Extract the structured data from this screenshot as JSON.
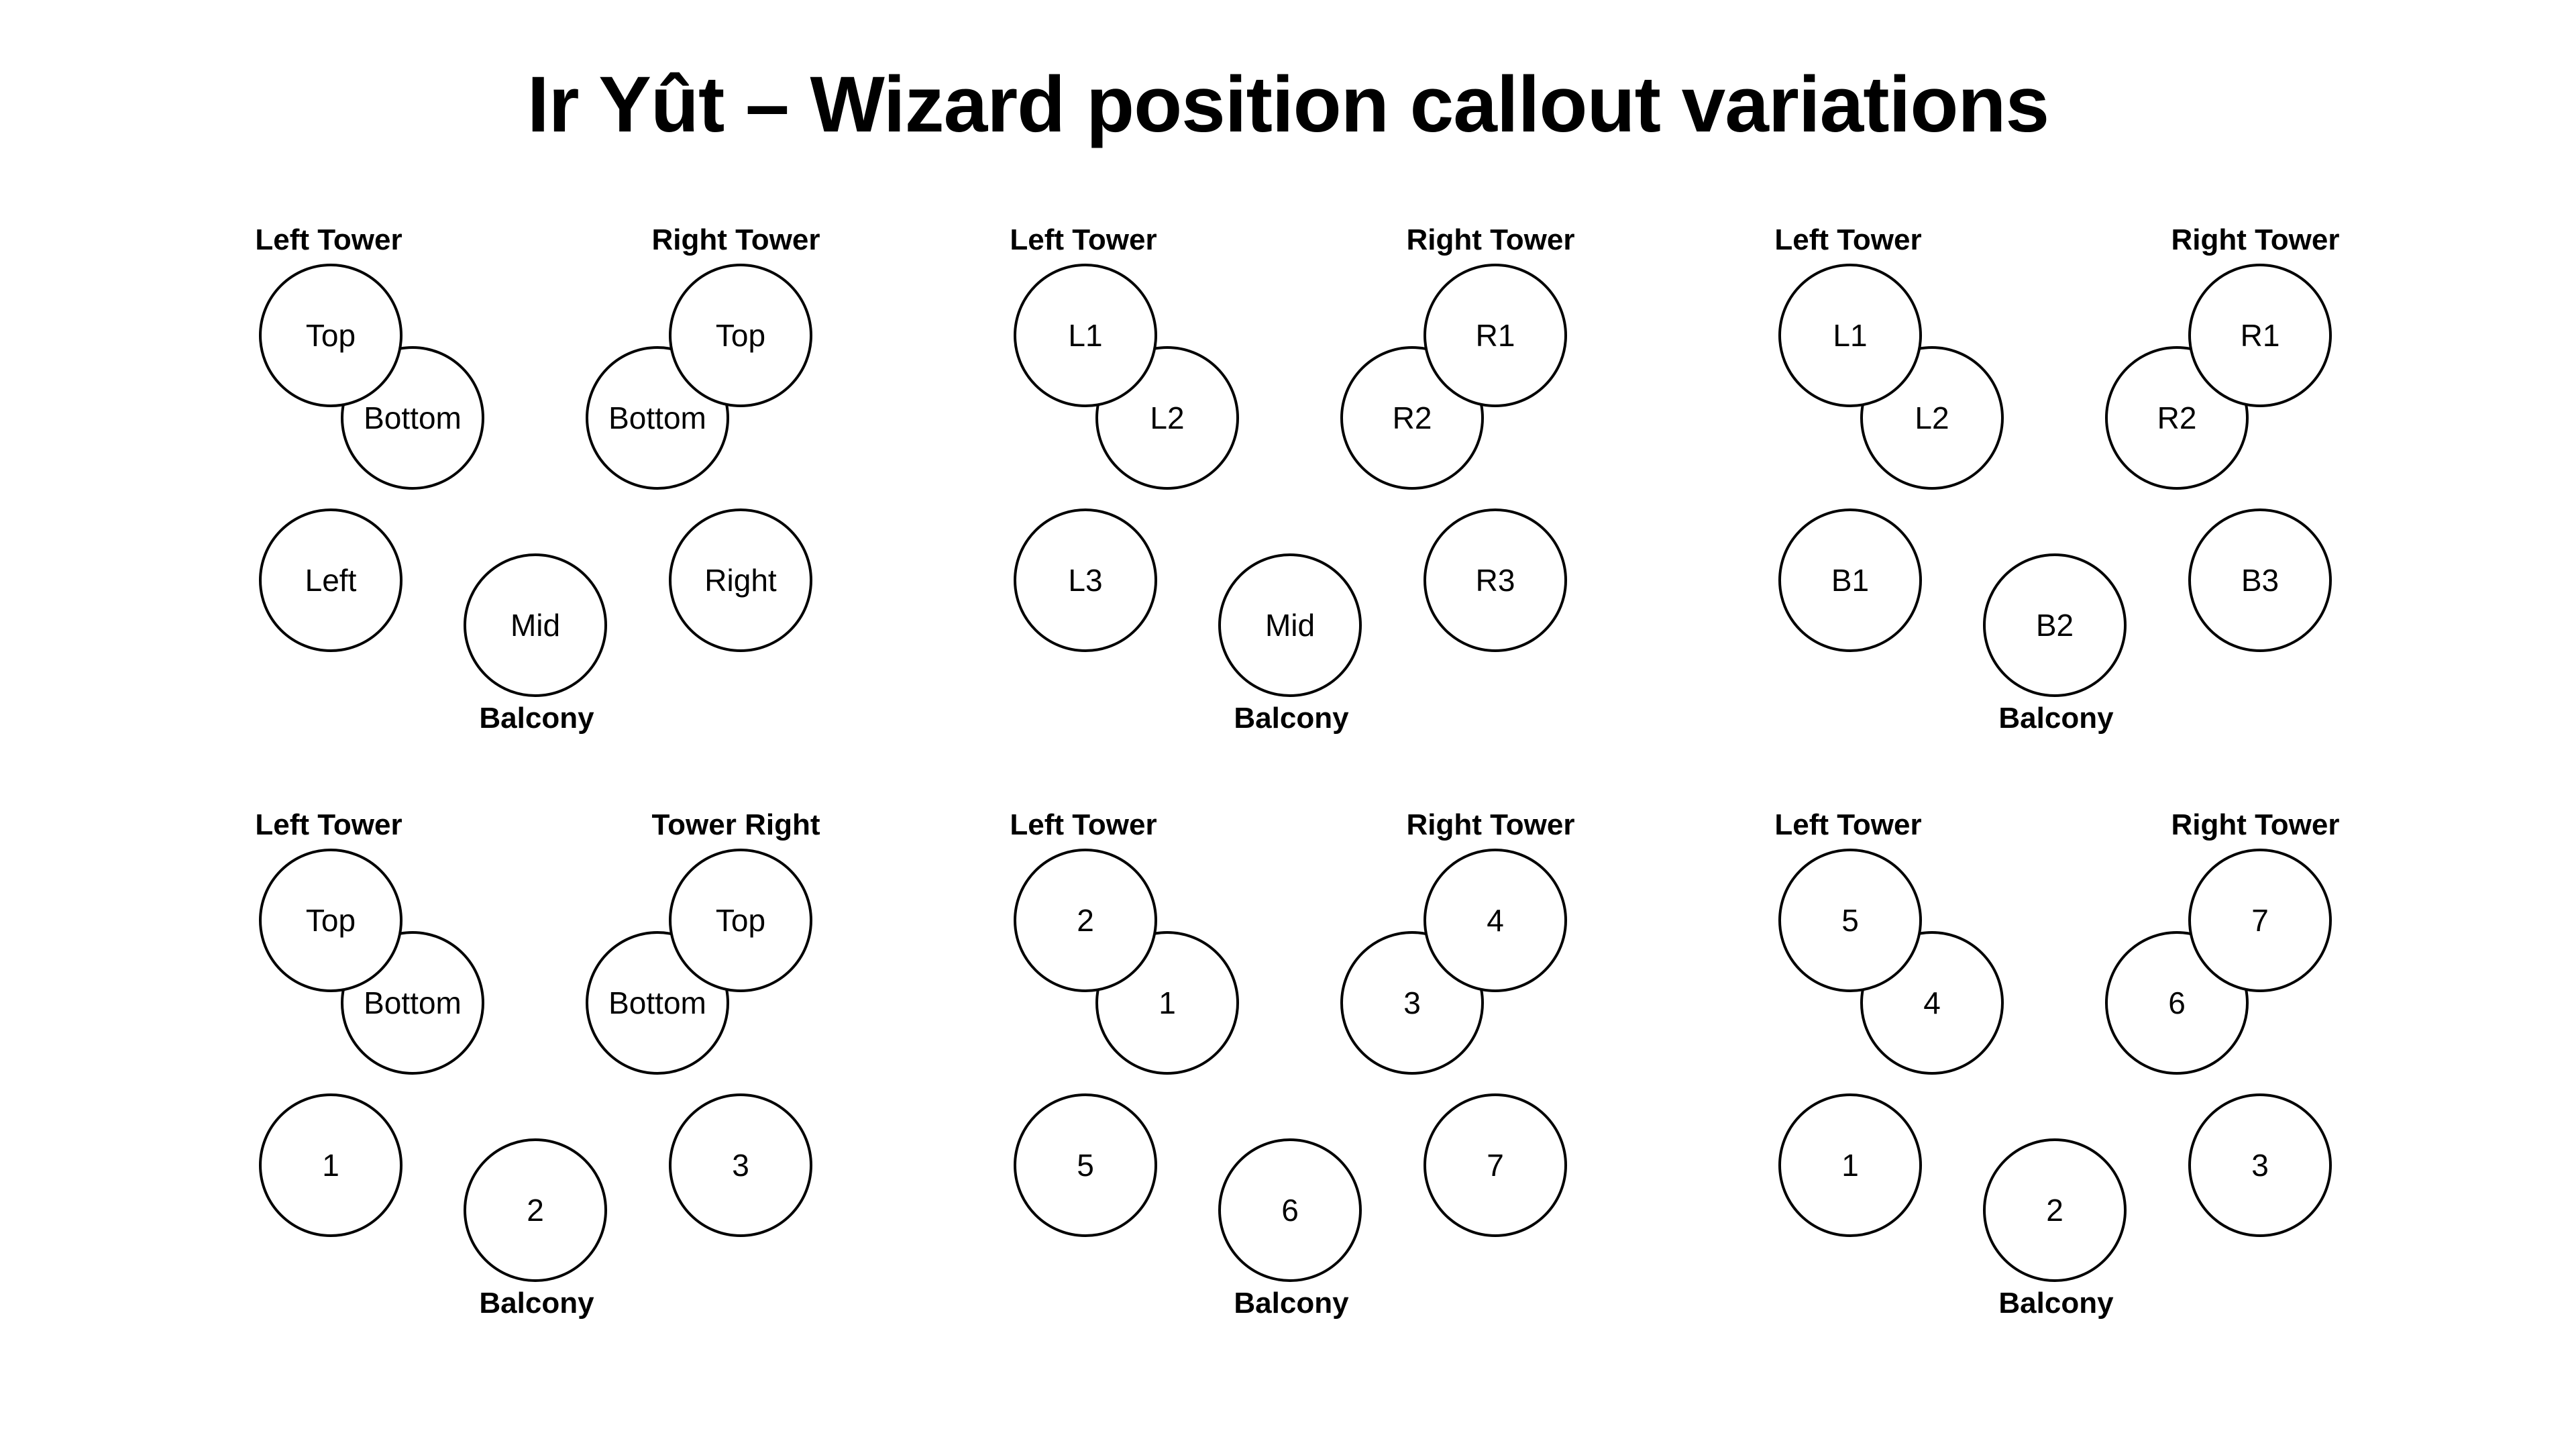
{
  "title": "Ir Yût – Wizard position callout variations",
  "variations": [
    {
      "left_tower_label": "Left Tower",
      "right_tower_label": "Right Tower",
      "balcony_label": "Balcony",
      "positions": {
        "lt_top": "Top",
        "lt_bottom": "Bottom",
        "rt_top": "Top",
        "rt_bottom": "Bottom",
        "left": "Left",
        "mid": "Mid",
        "right": "Right"
      }
    },
    {
      "left_tower_label": "Left Tower",
      "right_tower_label": "Right Tower",
      "balcony_label": "Balcony",
      "positions": {
        "lt_top": "L1",
        "lt_bottom": "L2",
        "rt_top": "R1",
        "rt_bottom": "R2",
        "left": "L3",
        "mid": "Mid",
        "right": "R3"
      }
    },
    {
      "left_tower_label": "Left Tower",
      "right_tower_label": "Right Tower",
      "balcony_label": "Balcony",
      "positions": {
        "lt_top": "L1",
        "lt_bottom": "L2",
        "rt_top": "R1",
        "rt_bottom": "R2",
        "left": "B1",
        "mid": "B2",
        "right": "B3"
      }
    },
    {
      "left_tower_label": "Left Tower",
      "right_tower_label": "Tower Right",
      "balcony_label": "Balcony",
      "positions": {
        "lt_top": "Top",
        "lt_bottom": "Bottom",
        "rt_top": "Top",
        "rt_bottom": "Bottom",
        "left": "1",
        "mid": "2",
        "right": "3"
      }
    },
    {
      "left_tower_label": "Left Tower",
      "right_tower_label": "Right Tower",
      "balcony_label": "Balcony",
      "positions": {
        "lt_top": "2",
        "lt_bottom": "1",
        "rt_top": "4",
        "rt_bottom": "3",
        "left": "5",
        "mid": "6",
        "right": "7"
      }
    },
    {
      "left_tower_label": "Left Tower",
      "right_tower_label": "Right Tower",
      "balcony_label": "Balcony",
      "positions": {
        "lt_top": "5",
        "lt_bottom": "4",
        "rt_top": "7",
        "rt_bottom": "6",
        "left": "1",
        "mid": "2",
        "right": "3"
      }
    }
  ]
}
